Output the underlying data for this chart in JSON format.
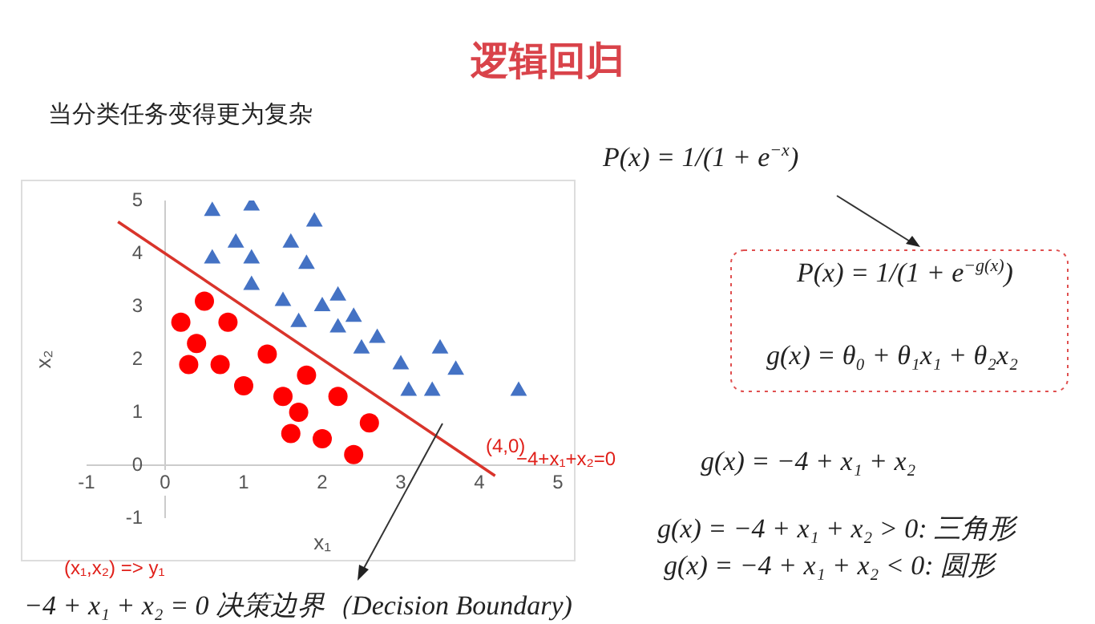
{
  "chart_data": {
    "type": "scatter",
    "title": "逻辑回归",
    "subtitle": "当分类任务变得更为复杂",
    "xlabel": "x₁",
    "ylabel": "x₂",
    "xlim": [
      -1,
      5
    ],
    "xticks": [
      -1,
      0,
      1,
      2,
      3,
      4,
      5
    ],
    "ylim": [
      -1,
      5
    ],
    "yticks": [
      -1,
      0,
      1,
      2,
      3,
      4,
      5
    ],
    "grid": false,
    "legend": false,
    "series": [
      {
        "type": "scatter",
        "marker": "triangle",
        "color": "#4472c4",
        "x": [
          0.6,
          1.1,
          1.9,
          0.9,
          1.6,
          0.6,
          1.1,
          1.8,
          1.1,
          1.5,
          2.2,
          2.0,
          2.4,
          1.7,
          2.2,
          2.7,
          2.5,
          3.0,
          3.5,
          3.7,
          3.1,
          3.4,
          4.5
        ],
        "values": [
          4.8,
          4.9,
          4.6,
          4.2,
          4.2,
          3.9,
          3.9,
          3.8,
          3.4,
          3.1,
          3.2,
          3.0,
          2.8,
          2.7,
          2.6,
          2.4,
          2.2,
          1.9,
          2.2,
          1.8,
          1.4,
          1.4,
          1.4
        ]
      },
      {
        "type": "scatter",
        "marker": "circle",
        "color": "#ff0000",
        "x": [
          0.5,
          0.2,
          0.8,
          0.4,
          0.3,
          0.7,
          1.3,
          1.0,
          1.8,
          1.5,
          2.2,
          1.7,
          2.6,
          1.6,
          2.0,
          2.4
        ],
        "values": [
          3.1,
          2.7,
          2.7,
          2.3,
          1.9,
          1.9,
          2.1,
          1.5,
          1.7,
          1.3,
          1.3,
          1.0,
          0.8,
          0.6,
          0.5,
          0.2
        ]
      },
      {
        "type": "line",
        "marker": "none",
        "line_style": "solid",
        "color": "#d9342b",
        "x": [
          -0.6,
          4.2
        ],
        "values": [
          4.6,
          -0.2
        ]
      }
    ],
    "annotations": [
      "P(x) = 1/(1 + e$^{−x}$)",
      "P(x) = 1/(1 + e$^{−g(x)}$)",
      "g(x) = θ₀ + θ₁x₁ + θ₂x₂",
      "g(x) = −4 + x₁ + x₂",
      "g(x) = −4 + x₁ + x₂ > 0: 三角形",
      "g(x) = −4 + x₁ + x₂ < 0: 圆形",
      "−4 + x₁ + x₂ = 0  决策边界（Decision Boundary)",
      "(x₁,x₂) => y₁",
      "−4+x₁+x₂=0",
      {
        "text": "(4,0)",
        "x": 4,
        "y": 0
      }
    ]
  }
}
